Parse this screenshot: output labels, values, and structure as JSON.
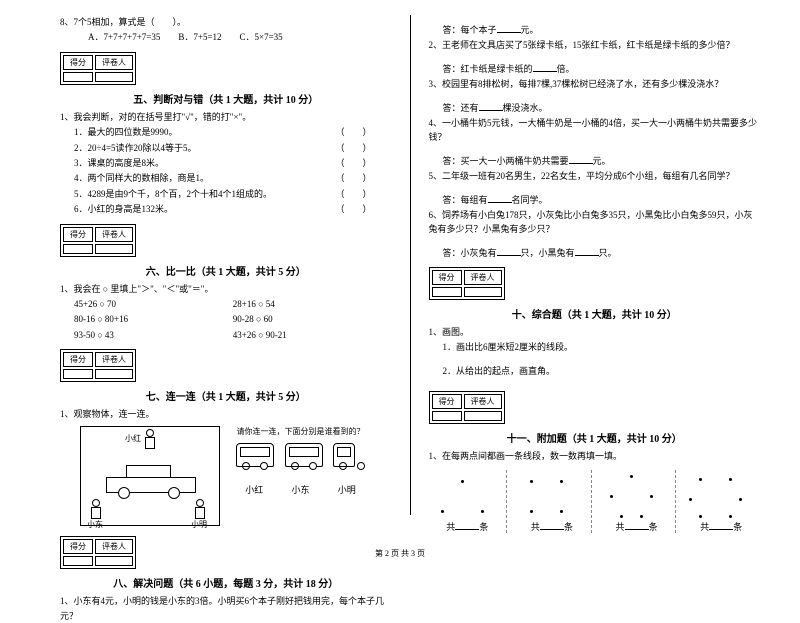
{
  "scorebox": {
    "c1": "得分",
    "c2": "评卷人"
  },
  "left": {
    "q8": "8、7个5相加，算式是（　　）。",
    "q8opts": "A．7+7+7+7+7=35　　B．7+5=12　　C．5×7=35",
    "sec5": "五、判断对与错（共 1 大题，共计 10 分）",
    "j_intro": "1、我会判断，对的在括号里打\"√\"，错的打\"×\"。",
    "j1": "1．最大的四位数是9990。",
    "j2": "2．20÷4=5读作20除以4等于5。",
    "j3": "3．课桌的高度是8米。",
    "j4": "4．两个同样大的数相除，商是1。",
    "j5": "5．4289是由9个千，8个百，2个十和4个1组成的。",
    "j6": "6．小红的身高是132米。",
    "paren": "（　　）",
    "sec6": "六、比一比（共 1 大题，共计 5 分）",
    "c_intro": "1、我会在 ○ 里填上\"＞\"、\"＜\"或\"＝\"。",
    "c1a": "45+26 ○ 70",
    "c1b": "28+16 ○ 54",
    "c2a": "80-16 ○ 80+16",
    "c2b": "90-28 ○ 60",
    "c3a": "93-50 ○ 43",
    "c3b": "43+26 ○ 90-21",
    "sec7": "七、连一连（共 1 大题，共计 5 分）",
    "l_intro": "1、观察物体，连一连。",
    "l_caption": "请你连一连，下面分别是谁看到的？",
    "kid_top": "小红",
    "kid_left": "小东",
    "kid_right": "小明",
    "name1": "小红",
    "name2": "小东",
    "name3": "小明",
    "sec8": "八、解决问题（共 6 小题，每题 3 分，共计 18 分）",
    "p1": "1、小东有4元，小明的钱是小东的3倍。小明买6个本子刚好把钱用完，每个本子几元？"
  },
  "right": {
    "a1": "答：每个本子",
    "a1b": "元。",
    "p2": "2、王老师在文具店买了5张绿卡纸，15张红卡纸，红卡纸是绿卡纸的多少倍？",
    "a2": "答：红卡纸是绿卡纸的",
    "a2b": "倍。",
    "p3": "3、校园里有8排松树，每排7棵,37棵松树已经浇了水，还有多少棵没浇水？",
    "a3": "答：还有",
    "a3b": "棵没浇水。",
    "p4": "4、一小桶牛奶5元钱，一大桶牛奶是一小桶的4倍，买一大一小两桶牛奶共需要多少钱？",
    "a4": "答：买一大一小两桶牛奶共需要",
    "a4b": "元。",
    "p5": "5、二年级一班有20名男生，22名女生，平均分成6个小组，每组有几名同学？",
    "a5": "答：每组有",
    "a5b": "名同学。",
    "p6": "6、饲养场有小白兔178只，小灰兔比小白兔多35只，小黑兔比小白兔多59只，小灰兔有多少只？小黑兔有多少只？",
    "a6": "答：小灰兔有",
    "a6m": "只，小黑兔有",
    "a6b": "只。",
    "sec10": "十、综合题（共 1 大题，共计 10 分）",
    "z_intro": "1、画图。",
    "z1": "1．画出比6厘米短2厘米的线段。",
    "z2": "2．从给出的起点，画直角。",
    "sec11": "十一、附加题（共 1 大题，共计 10 分）",
    "f_intro": "1、在每两点间都画一条线段，数一数再填一填。",
    "gong": "共",
    "tiao": "条"
  },
  "footer": "第 2 页 共 3 页",
  "dots": {
    "set1": [
      [
        30,
        10
      ],
      [
        10,
        40
      ],
      [
        50,
        40
      ]
    ],
    "set2": [
      [
        15,
        10
      ],
      [
        45,
        10
      ],
      [
        15,
        40
      ],
      [
        45,
        40
      ]
    ],
    "set3": [
      [
        30,
        5
      ],
      [
        10,
        25
      ],
      [
        50,
        25
      ],
      [
        20,
        45
      ],
      [
        40,
        45
      ]
    ],
    "set4": [
      [
        15,
        8
      ],
      [
        45,
        8
      ],
      [
        5,
        28
      ],
      [
        55,
        28
      ],
      [
        15,
        45
      ],
      [
        45,
        45
      ]
    ]
  }
}
